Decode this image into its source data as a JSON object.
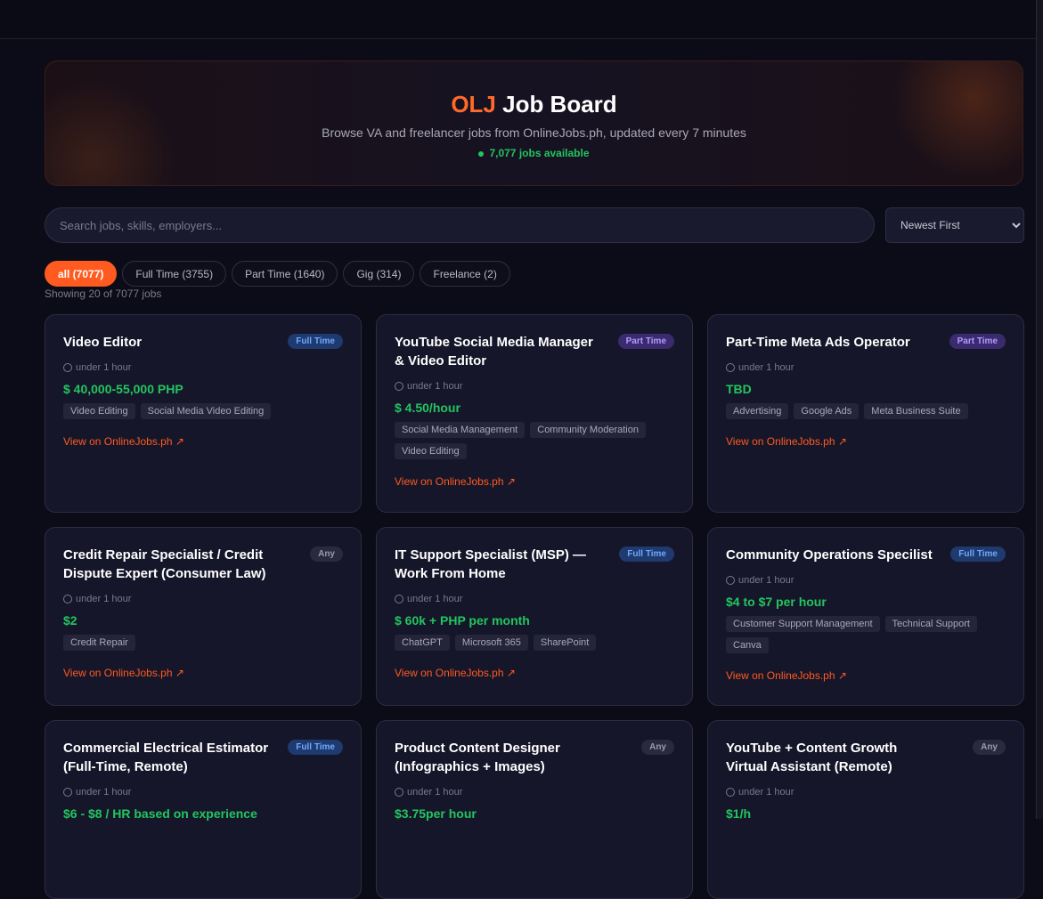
{
  "hero": {
    "brand": "OLJ",
    "title": " Job Board",
    "subtitle": "Browse VA and freelancer jobs from OnlineJobs.ph, updated every 7 minutes",
    "count": "7,077",
    "count_label": " jobs available"
  },
  "search": {
    "placeholder": "Search jobs, skills, employers...",
    "value": ""
  },
  "sort": {
    "selected": "Newest First"
  },
  "filters": [
    {
      "label": "all (7077)",
      "active": true
    },
    {
      "label": "Full Time (3755)"
    },
    {
      "label": "Part Time (1640)"
    },
    {
      "label": "Gig (314)"
    },
    {
      "label": "Freelance (2)"
    }
  ],
  "showing": "Showing 20 of 7077 jobs",
  "link_label": "View on OnlineJobs.ph",
  "colors": {
    "accent": "#ff5a1f",
    "salary": "#22c55e",
    "background": "#0c0c18"
  },
  "jobs": [
    {
      "title": "Video Editor",
      "type": "Full Time",
      "time": "under 1 hour",
      "salary": "$ 40,000-55,000 PHP",
      "tags": [
        "Video Editing",
        "Social Media Video Editing"
      ]
    },
    {
      "title": "YouTube Social Media Manager & Video Editor",
      "type": "Part Time",
      "time": "under 1 hour",
      "salary": "$ 4.50/hour",
      "tags": [
        "Social Media Management",
        "Community Moderation",
        "Video Editing"
      ]
    },
    {
      "title": "Part-Time Meta Ads Operator",
      "type": "Part Time",
      "time": "under 1 hour",
      "salary": "TBD",
      "tags": [
        "Advertising",
        "Google Ads",
        "Meta Business Suite"
      ]
    },
    {
      "title": "Credit Repair Specialist / Credit Dispute Expert (Consumer Law)",
      "type": "Any",
      "time": "under 1 hour",
      "salary": "$2",
      "tags": [
        "Credit Repair"
      ]
    },
    {
      "title": "IT Support Specialist (MSP) — Work From Home",
      "type": "Full Time",
      "time": "under 1 hour",
      "salary": "$ 60k + PHP per month",
      "tags": [
        "ChatGPT",
        "Microsoft 365",
        "SharePoint"
      ]
    },
    {
      "title": "Community Operations Specilist",
      "type": "Full Time",
      "time": "under 1 hour",
      "salary": "$4 to $7 per hour",
      "tags": [
        "Customer Support Management",
        "Technical Support",
        "Canva"
      ]
    },
    {
      "title": "Commercial Electrical Estimator (Full-Time, Remote)",
      "type": "Full Time",
      "time": "under 1 hour",
      "salary": "$6 - $8 / HR based on experience",
      "tags": []
    },
    {
      "title": "Product Content Designer (Infographics + Images)",
      "type": "Any",
      "time": "under 1 hour",
      "salary": "$3.75per hour",
      "tags": []
    },
    {
      "title": "YouTube + Content Growth Virtual Assistant (Remote)",
      "type": "Any",
      "time": "under 1 hour",
      "salary": "$1/h",
      "tags": []
    }
  ]
}
